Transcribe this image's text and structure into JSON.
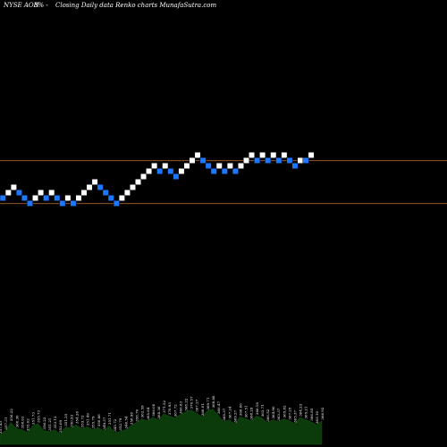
{
  "header": {
    "ticker": "NYSE AON",
    "change": "8% -",
    "caption": "Closing Daily data  Renko  charts MunafaSutra.com"
  },
  "colors": {
    "background": "#000000",
    "up_brick": "#ffffff",
    "down_brick": "#1e78ff",
    "reference_line": "#c87832",
    "volume": "#0b3a0b",
    "text": "#ffffff"
  },
  "chart_data": {
    "type": "renko",
    "y_unit": "brick",
    "bricks": [
      {
        "dir": "down",
        "level": 0
      },
      {
        "dir": "up",
        "level": 1
      },
      {
        "dir": "up",
        "level": 2
      },
      {
        "dir": "down",
        "level": 1
      },
      {
        "dir": "down",
        "level": 0
      },
      {
        "dir": "down",
        "level": -1
      },
      {
        "dir": "up",
        "level": 0
      },
      {
        "dir": "up",
        "level": 1
      },
      {
        "dir": "down",
        "level": 0
      },
      {
        "dir": "up",
        "level": 1
      },
      {
        "dir": "down",
        "level": 0
      },
      {
        "dir": "down",
        "level": -1
      },
      {
        "dir": "up",
        "level": 0
      },
      {
        "dir": "down",
        "level": -1
      },
      {
        "dir": "up",
        "level": 0
      },
      {
        "dir": "up",
        "level": 1
      },
      {
        "dir": "up",
        "level": 2
      },
      {
        "dir": "up",
        "level": 3
      },
      {
        "dir": "down",
        "level": 2
      },
      {
        "dir": "down",
        "level": 1
      },
      {
        "dir": "down",
        "level": 0
      },
      {
        "dir": "down",
        "level": -1
      },
      {
        "dir": "up",
        "level": 0
      },
      {
        "dir": "up",
        "level": 1
      },
      {
        "dir": "up",
        "level": 2
      },
      {
        "dir": "up",
        "level": 3
      },
      {
        "dir": "up",
        "level": 4
      },
      {
        "dir": "up",
        "level": 5
      },
      {
        "dir": "up",
        "level": 6
      },
      {
        "dir": "down",
        "level": 5
      },
      {
        "dir": "up",
        "level": 6
      },
      {
        "dir": "down",
        "level": 5
      },
      {
        "dir": "down",
        "level": 4
      },
      {
        "dir": "up",
        "level": 5
      },
      {
        "dir": "up",
        "level": 6
      },
      {
        "dir": "up",
        "level": 7
      },
      {
        "dir": "up",
        "level": 8
      },
      {
        "dir": "down",
        "level": 7
      },
      {
        "dir": "down",
        "level": 6
      },
      {
        "dir": "down",
        "level": 5
      },
      {
        "dir": "up",
        "level": 6
      },
      {
        "dir": "down",
        "level": 5
      },
      {
        "dir": "up",
        "level": 6
      },
      {
        "dir": "down",
        "level": 5
      },
      {
        "dir": "up",
        "level": 6
      },
      {
        "dir": "up",
        "level": 7
      },
      {
        "dir": "up",
        "level": 8
      },
      {
        "dir": "down",
        "level": 7
      },
      {
        "dir": "up",
        "level": 8
      },
      {
        "dir": "down",
        "level": 7
      },
      {
        "dir": "up",
        "level": 8
      },
      {
        "dir": "down",
        "level": 7
      },
      {
        "dir": "up",
        "level": 8
      },
      {
        "dir": "down",
        "level": 7
      },
      {
        "dir": "down",
        "level": 6
      },
      {
        "dir": "up",
        "level": 7
      },
      {
        "dir": "down",
        "level": 7
      },
      {
        "dir": "up",
        "level": 8
      }
    ],
    "reference_lines": [
      7,
      -1
    ],
    "volume_labels": [
      "357.43",
      "357.31",
      "356.22",
      "360.30",
      "358.02",
      "355.02",
      "351.73",
      "355.73",
      "356.22",
      "351.21",
      "353.12",
      "352.09",
      "351.25",
      "350.93",
      "354.26",
      "353.72",
      "351.49",
      "355.79",
      "350.86",
      "349.37",
      "351.71",
      "345.72",
      "352.79",
      "346.54",
      "356.98",
      "358.70",
      "362.59",
      "365.84",
      "366.00",
      "368.36",
      "371.52",
      "370.93",
      "367.72",
      "366.83",
      "368.22",
      "370.57",
      "367.27",
      "366.01",
      "369.71",
      "368.88",
      "366.47",
      "368.37",
      "367.24",
      "369.27",
      "368.06",
      "367.51",
      "368.29",
      "366.18",
      "363.71",
      "366.52",
      "364.90",
      "363.37",
      "365.82",
      "367.25",
      "365.37",
      "364.23",
      "365.21",
      "366.85",
      "365.10",
      "366.92"
    ],
    "volume_values": [
      0.2,
      0.28,
      0.45,
      0.32,
      0.3,
      0.25,
      0.38,
      0.42,
      0.28,
      0.26,
      0.3,
      0.22,
      0.35,
      0.33,
      0.4,
      0.32,
      0.36,
      0.3,
      0.34,
      0.28,
      0.38,
      0.24,
      0.26,
      0.3,
      0.38,
      0.44,
      0.52,
      0.48,
      0.55,
      0.5,
      0.62,
      0.58,
      0.54,
      0.6,
      0.66,
      0.7,
      0.64,
      0.56,
      0.68,
      0.72,
      0.6,
      0.46,
      0.5,
      0.42,
      0.56,
      0.52,
      0.48,
      0.58,
      0.54,
      0.44,
      0.5,
      0.46,
      0.52,
      0.48,
      0.42,
      0.55,
      0.5,
      0.46,
      0.4,
      0.48
    ]
  }
}
